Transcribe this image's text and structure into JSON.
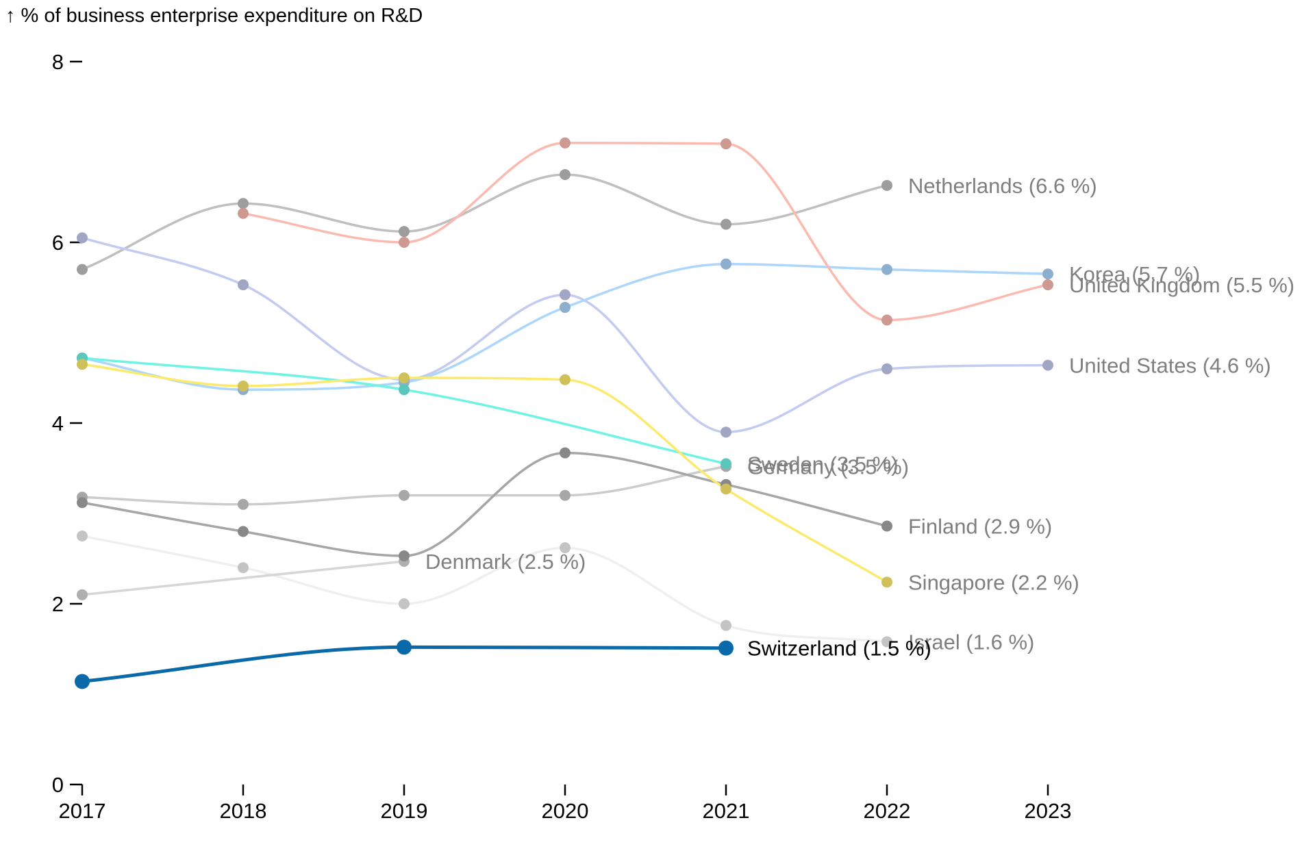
{
  "chart_data": {
    "type": "line",
    "ylabel": "↑ % of business enterprise expenditure on R&D",
    "xlabel": "",
    "x": [
      "2017",
      "2018",
      "2019",
      "2020",
      "2021",
      "2022",
      "2023"
    ],
    "ylim": [
      0,
      8
    ],
    "yticks": [
      "0",
      "2",
      "4",
      "6",
      "8"
    ],
    "grid": false,
    "legend": "direct labels at line ends",
    "series": [
      {
        "name": "Israel",
        "label": "Israel (1.6 %)",
        "color": "#efefef",
        "highlight": false,
        "values": [
          2.75,
          2.4,
          2.0,
          2.62,
          1.76,
          1.58,
          null
        ]
      },
      {
        "name": "Denmark",
        "label": "Denmark (2.5 %)",
        "color": "#d6d6d6",
        "highlight": false,
        "values": [
          2.1,
          null,
          2.47,
          null,
          null,
          null,
          null
        ]
      },
      {
        "name": "Germany",
        "label": "Germany (3.5 %)",
        "color": "#cccccc",
        "highlight": false,
        "values": [
          3.18,
          3.1,
          3.2,
          3.2,
          3.52,
          null,
          null
        ]
      },
      {
        "name": "Finland",
        "label": "Finland (2.9 %)",
        "color": "#a6a6a6",
        "highlight": false,
        "values": [
          3.12,
          2.8,
          2.53,
          3.67,
          3.32,
          2.86,
          null
        ]
      },
      {
        "name": "Netherlands",
        "label": "Netherlands (6.6 %)",
        "color": "#bfbfbf",
        "highlight": false,
        "values": [
          5.7,
          6.43,
          6.12,
          6.75,
          6.2,
          6.63,
          null
        ]
      },
      {
        "name": "United States",
        "label": "United States (4.6 %)",
        "color": "#c4cbf0",
        "highlight": false,
        "values": [
          6.05,
          5.53,
          4.48,
          5.42,
          3.9,
          4.6,
          4.64
        ]
      },
      {
        "name": "Korea",
        "label": "Korea (5.7 %)",
        "color": "#acd6fb",
        "highlight": false,
        "values": [
          4.72,
          4.37,
          4.45,
          5.28,
          5.76,
          5.7,
          5.65
        ]
      },
      {
        "name": "United Kingdom",
        "label": "United Kingdom (5.5 %)",
        "color": "#fbbab0",
        "highlight": false,
        "values": [
          null,
          6.32,
          6.0,
          7.1,
          7.09,
          5.14,
          5.53
        ]
      },
      {
        "name": "Sweden",
        "label": "Sweden (3.5 %)",
        "color": "#6ff3e4",
        "highlight": false,
        "values": [
          4.72,
          null,
          4.37,
          null,
          3.55,
          null,
          null
        ]
      },
      {
        "name": "Singapore",
        "label": "Singapore (2.2 %)",
        "color": "#fcea6e",
        "highlight": false,
        "values": [
          4.65,
          4.41,
          4.5,
          4.48,
          3.27,
          2.24,
          null
        ]
      },
      {
        "name": "Switzerland",
        "label": "Switzerland (1.5 %)",
        "color": "#0a69a8",
        "highlight": true,
        "values": [
          1.14,
          null,
          1.52,
          null,
          1.51,
          null,
          null
        ]
      }
    ]
  }
}
